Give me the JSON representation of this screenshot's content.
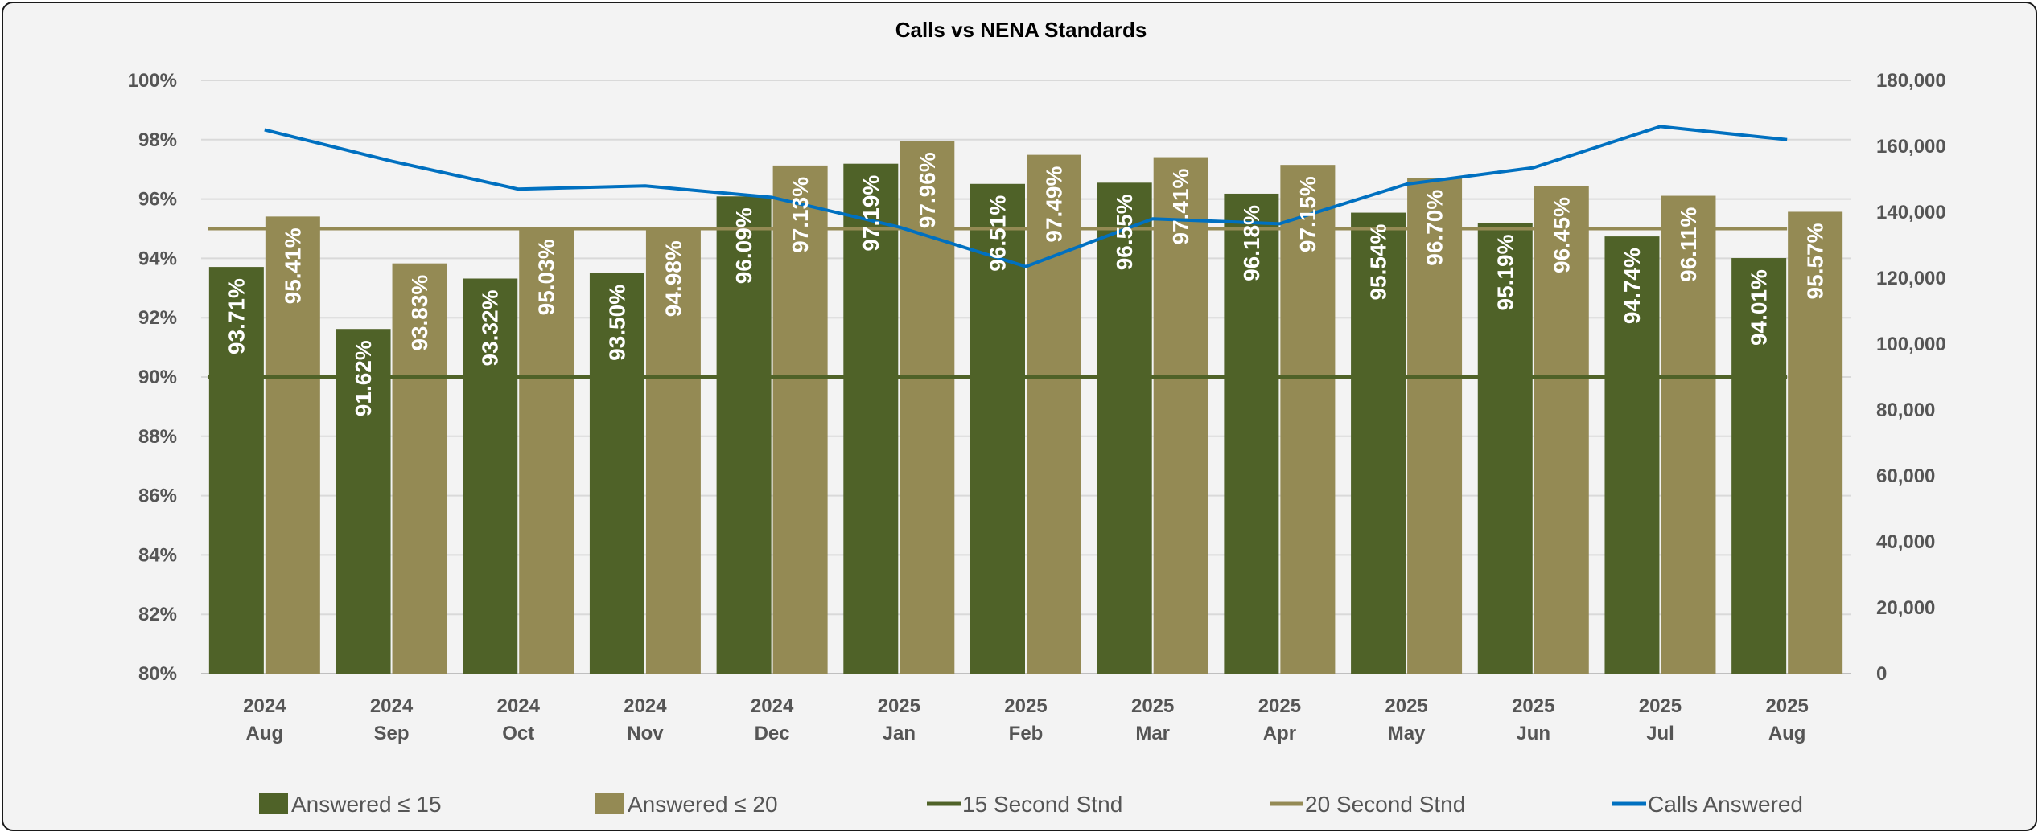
{
  "chart_data": {
    "type": "bar",
    "title": "Calls vs NENA Standards",
    "categories": [
      [
        "2024",
        "Aug"
      ],
      [
        "2024",
        "Sep"
      ],
      [
        "2024",
        "Oct"
      ],
      [
        "2024",
        "Nov"
      ],
      [
        "2024",
        "Dec"
      ],
      [
        "2025",
        "Jan"
      ],
      [
        "2025",
        "Feb"
      ],
      [
        "2025",
        "Mar"
      ],
      [
        "2025",
        "Apr"
      ],
      [
        "2025",
        "May"
      ],
      [
        "2025",
        "Jun"
      ],
      [
        "2025",
        "Jul"
      ],
      [
        "2025",
        "Aug"
      ]
    ],
    "series": [
      {
        "name": "Answered ≤ 15",
        "kind": "bar",
        "axis": "left",
        "color": "#4f6228",
        "values": [
          93.71,
          91.62,
          93.32,
          93.5,
          96.09,
          97.19,
          96.51,
          96.55,
          96.18,
          95.54,
          95.19,
          94.74,
          94.01
        ],
        "labels": [
          "93.71%",
          "91.62%",
          "93.32%",
          "93.50%",
          "96.09%",
          "97.19%",
          "96.51%",
          "96.55%",
          "96.18%",
          "95.54%",
          "95.19%",
          "94.74%",
          "94.01%"
        ]
      },
      {
        "name": "Answered ≤ 20",
        "kind": "bar",
        "axis": "left",
        "color": "#948a54",
        "values": [
          95.41,
          93.83,
          95.03,
          94.98,
          97.13,
          97.96,
          97.49,
          97.41,
          97.15,
          96.7,
          96.45,
          96.11,
          95.57
        ],
        "labels": [
          "95.41%",
          "93.83%",
          "95.03%",
          "94.98%",
          "97.13%",
          "97.96%",
          "97.49%",
          "97.41%",
          "97.15%",
          "96.70%",
          "96.45%",
          "96.11%",
          "95.57%"
        ]
      },
      {
        "name": "15 Second Stnd",
        "kind": "line",
        "axis": "left",
        "color": "#4f6228",
        "values": [
          90,
          90,
          90,
          90,
          90,
          90,
          90,
          90,
          90,
          90,
          90,
          90,
          90
        ]
      },
      {
        "name": "20 Second Stnd",
        "kind": "line",
        "axis": "left",
        "color": "#948a54",
        "values": [
          95,
          95,
          95,
          95,
          95,
          95,
          95,
          95,
          95,
          95,
          95,
          95,
          95
        ]
      },
      {
        "name": "Calls Answered",
        "kind": "line",
        "axis": "right",
        "color": "#0070c0",
        "values": [
          165000,
          155500,
          147000,
          148000,
          144500,
          135500,
          123500,
          138000,
          136500,
          148500,
          153500,
          166000,
          162000
        ]
      }
    ],
    "y_left": {
      "min": 80,
      "max": 100,
      "step": 2,
      "tick_labels": [
        "80%",
        "82%",
        "84%",
        "86%",
        "88%",
        "90%",
        "92%",
        "94%",
        "96%",
        "98%",
        "100%"
      ]
    },
    "y_right": {
      "min": 0,
      "max": 180000,
      "step": 20000,
      "tick_labels": [
        "0",
        "20,000",
        "40,000",
        "60,000",
        "80,000",
        "100,000",
        "120,000",
        "140,000",
        "160,000",
        "180,000"
      ]
    },
    "grid": true,
    "legend": "bottom",
    "legend_items": [
      "Answered ≤ 15",
      "Answered ≤ 20",
      "15 Second Stnd",
      "20 Second Stnd",
      "Calls Answered"
    ]
  }
}
